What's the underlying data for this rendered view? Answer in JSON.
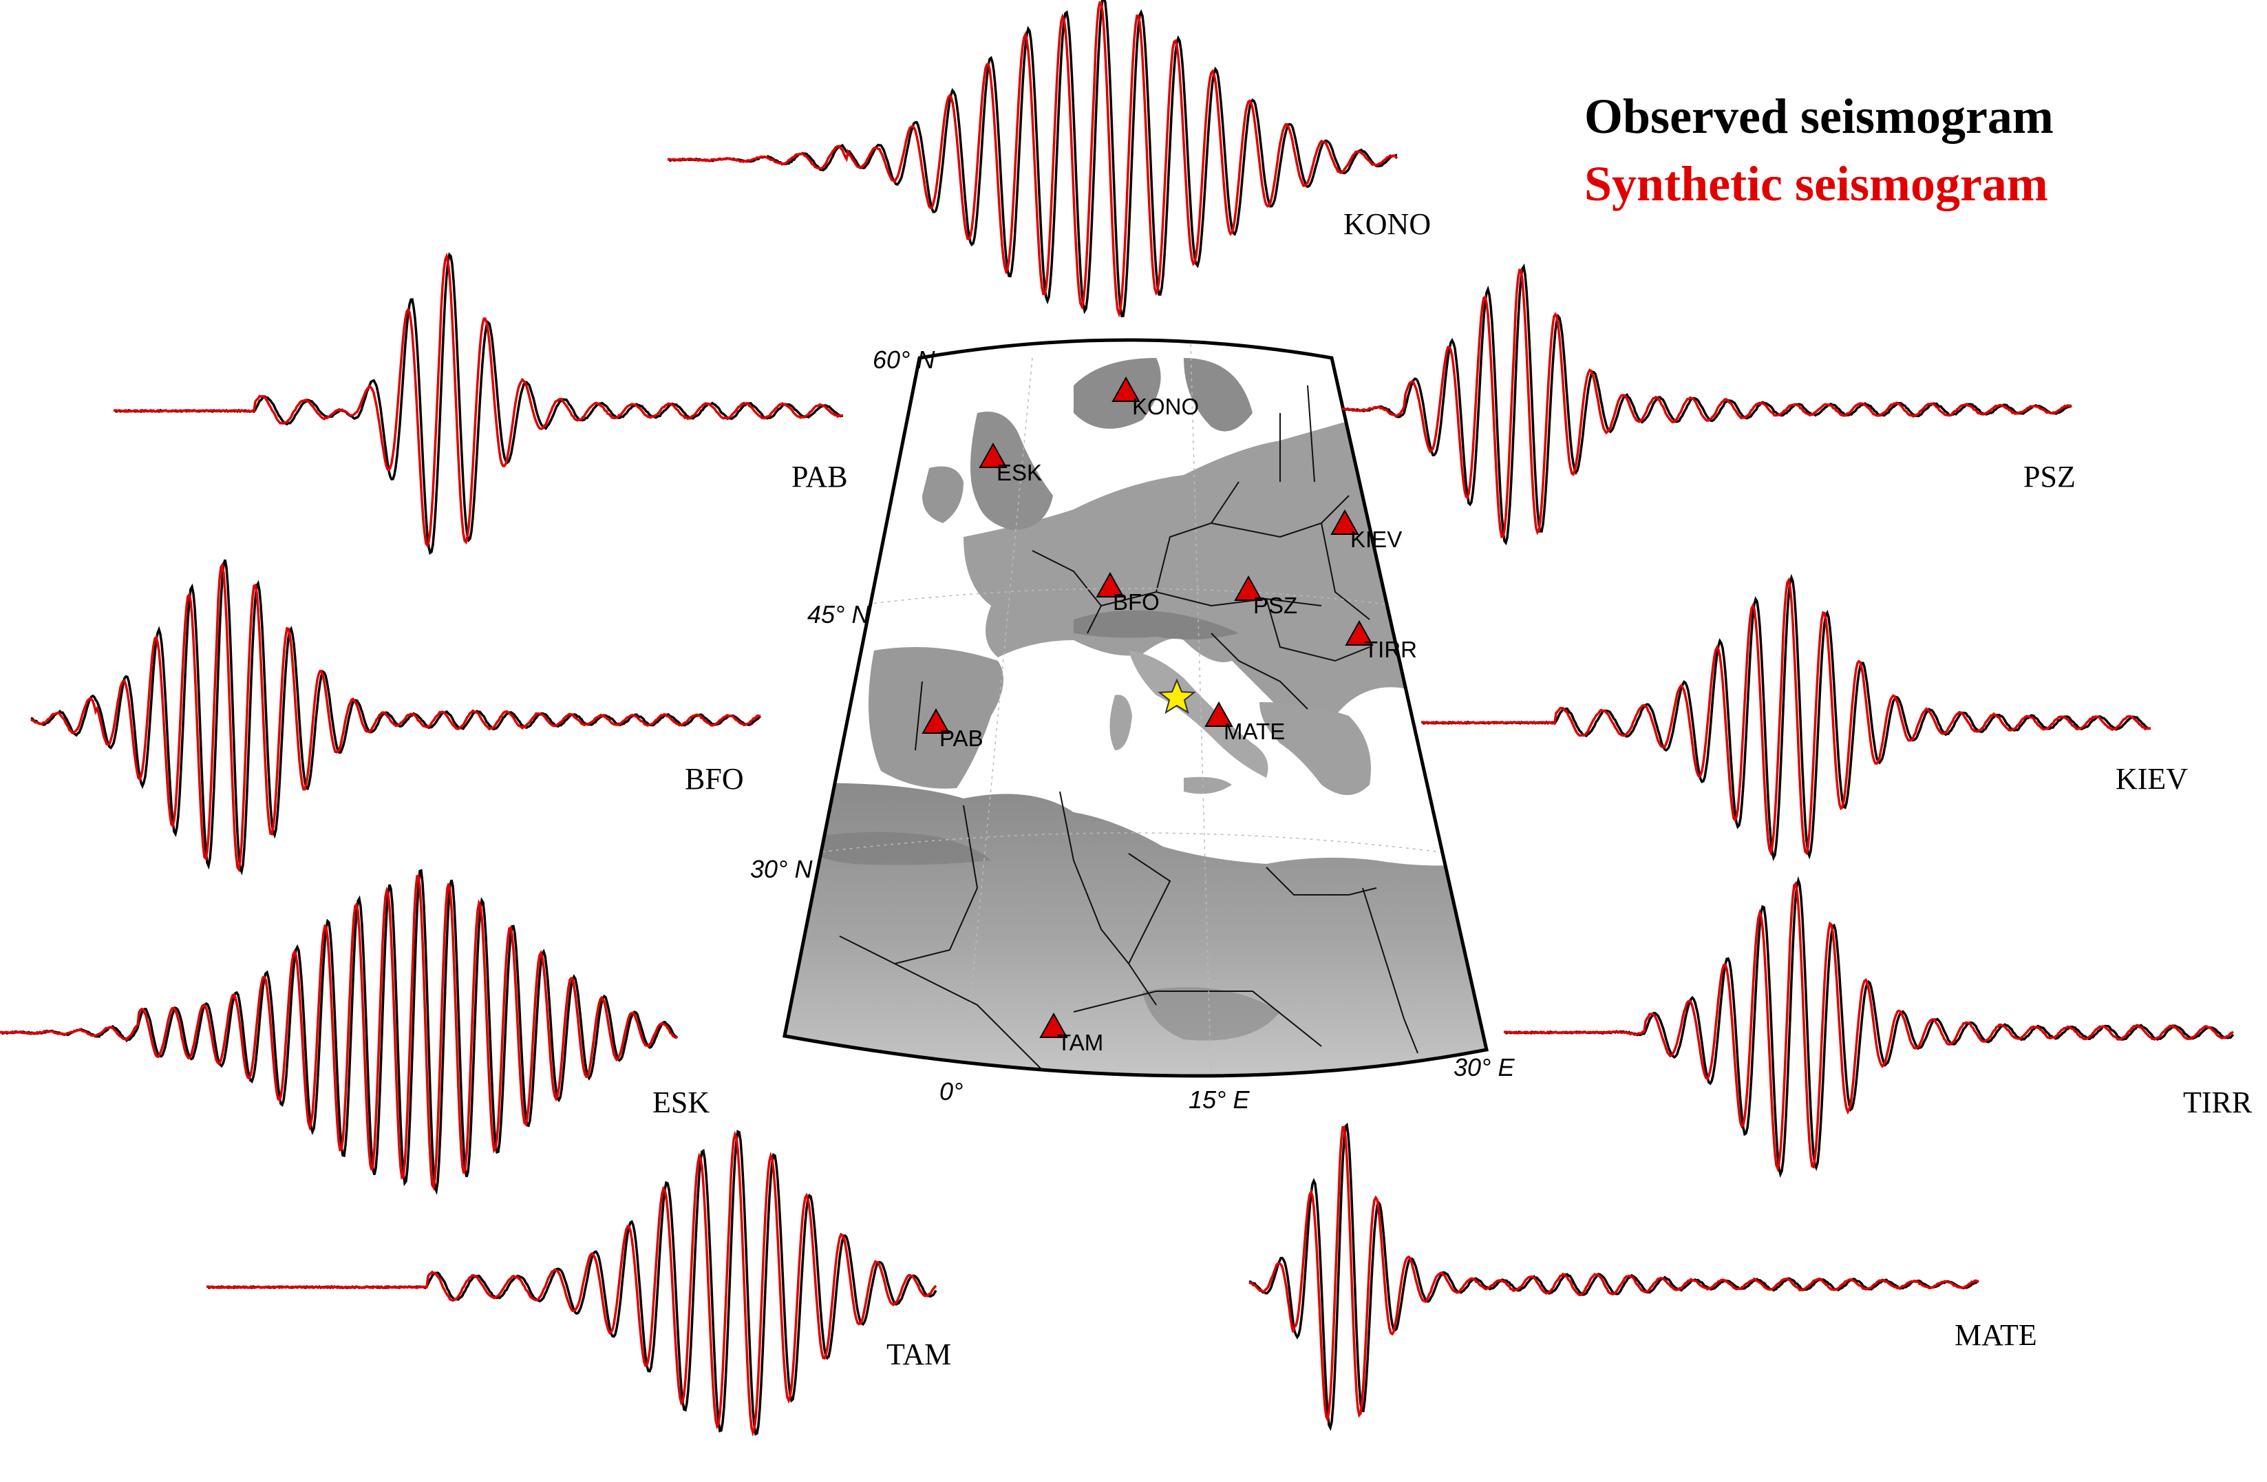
{
  "legend": {
    "observed": "Observed seismogram",
    "synthetic": "Synthetic seismogram",
    "observed_color": "#000000",
    "synthetic_color": "#e00000"
  },
  "traces": [
    {
      "station": "KONO"
    },
    {
      "station": "PAB"
    },
    {
      "station": "PSZ"
    },
    {
      "station": "BFO"
    },
    {
      "station": "KIEV"
    },
    {
      "station": "ESK"
    },
    {
      "station": "TIRR"
    },
    {
      "station": "TAM"
    },
    {
      "station": "MATE"
    }
  ],
  "map": {
    "stations": [
      "KONO",
      "ESK",
      "KIEV",
      "BFO",
      "PSZ",
      "TIRR",
      "PAB",
      "MATE",
      "TAM"
    ],
    "station_marker_color": "#dd0000",
    "epicenter_color": "#ffee00",
    "lat_labels": [
      "60° N",
      "45° N",
      "30° N"
    ],
    "lon_labels": [
      "0°",
      "15° E",
      "30° E"
    ]
  }
}
